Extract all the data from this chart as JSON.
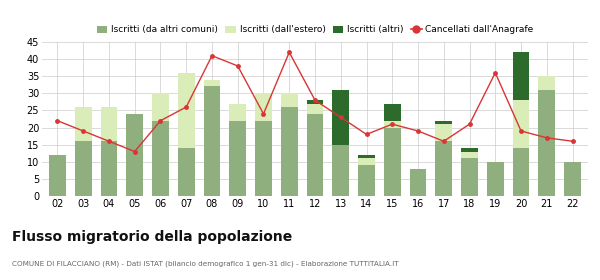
{
  "years": [
    "02",
    "03",
    "04",
    "05",
    "06",
    "07",
    "08",
    "09",
    "10",
    "11",
    "12",
    "13",
    "14",
    "15",
    "16",
    "17",
    "18",
    "19",
    "20",
    "21",
    "22"
  ],
  "iscritti_altri_comuni": [
    12,
    16,
    16,
    24,
    22,
    14,
    32,
    22,
    22,
    26,
    24,
    15,
    9,
    20,
    8,
    16,
    11,
    10,
    14,
    31,
    10
  ],
  "iscritti_estero": [
    0,
    10,
    10,
    0,
    8,
    22,
    2,
    5,
    8,
    4,
    3,
    0,
    2,
    2,
    0,
    5,
    2,
    0,
    14,
    4,
    0
  ],
  "iscritti_altri": [
    0,
    0,
    0,
    0,
    0,
    0,
    0,
    0,
    0,
    0,
    1,
    16,
    1,
    5,
    0,
    1,
    1,
    0,
    14,
    0,
    0
  ],
  "cancellati": [
    22,
    19,
    16,
    13,
    22,
    26,
    41,
    38,
    24,
    42,
    28,
    23,
    18,
    21,
    19,
    16,
    21,
    36,
    19,
    17,
    16
  ],
  "color_comuni": "#8faf7e",
  "color_estero": "#daedb8",
  "color_altri": "#2d6b2d",
  "color_cancellati": "#d93535",
  "title": "Flusso migratorio della popolazione",
  "subtitle": "COMUNE DI FILACCIANO (RM) - Dati ISTAT (bilancio demografico 1 gen-31 dic) - Elaborazione TUTTITALIA.IT",
  "ylim": [
    0,
    45
  ],
  "yticks": [
    0,
    5,
    10,
    15,
    20,
    25,
    30,
    35,
    40,
    45
  ],
  "legend_labels": [
    "Iscritti (da altri comuni)",
    "Iscritti (dall'estero)",
    "Iscritti (altri)",
    "Cancellati dall'Anagrafe"
  ],
  "bg_color": "#ffffff"
}
